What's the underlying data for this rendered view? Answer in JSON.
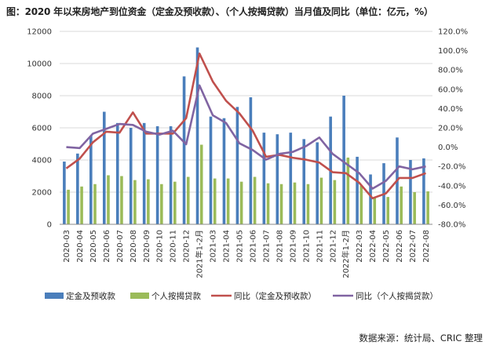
{
  "title": "图：2020 年以来房地产到位资金（定金及预收款）、（个人按揭贷款）当月值及同比（单位：亿元，%）",
  "source": "数据来源：统计局、CRIC 整理",
  "colors": {
    "bar1": "#4a7ebb",
    "bar2": "#9bbb59",
    "line1": "#c0504d",
    "line2": "#8064a2",
    "grid": "#d9d9d9",
    "axis": "#888888"
  },
  "chart_data": {
    "type": "bar",
    "categories": [
      "2020-03",
      "2020-04",
      "2020-05",
      "2020-06",
      "2020-07",
      "2020-08",
      "2020-09",
      "2020-10",
      "2020-11",
      "2020-12",
      "2021年1-2月",
      "2021-03",
      "2021-04",
      "2021-05",
      "2021-06",
      "2021-07",
      "2021-08",
      "2021-09",
      "2021-10",
      "2021-11",
      "2021-12",
      "2022年1-2月",
      "2022-03",
      "2022-04",
      "2022-05",
      "2022-06",
      "2022-07",
      "2022-08"
    ],
    "series": [
      {
        "name": "定金及预收款",
        "kind": "bar",
        "axis": "left",
        "values": [
          3900,
          4400,
          5500,
          7000,
          6300,
          6000,
          6300,
          6100,
          6100,
          9200,
          11000,
          6700,
          6600,
          7300,
          7900,
          5700,
          5600,
          5700,
          5300,
          5100,
          6700,
          8000,
          4200,
          3100,
          3800,
          5400,
          4000,
          4100
        ]
      },
      {
        "name": "个人按揭贷款",
        "kind": "bar",
        "axis": "left",
        "values": [
          2150,
          2350,
          2500,
          3050,
          3000,
          2750,
          2800,
          2500,
          2650,
          2950,
          4950,
          2850,
          2850,
          2650,
          2950,
          2550,
          2500,
          2600,
          2500,
          2900,
          2750,
          4150,
          2400,
          1700,
          1700,
          2350,
          2000,
          2050
        ]
      },
      {
        "name": "同比（定金及预收款）",
        "kind": "line",
        "axis": "right",
        "values": [
          -22,
          -12,
          5,
          16,
          15,
          36,
          14,
          14,
          14,
          30,
          97,
          68,
          48,
          35,
          17,
          -10,
          -8,
          -11,
          -13,
          -16,
          -26,
          -27,
          -37,
          -53,
          -48,
          -32,
          -32,
          -27
        ]
      },
      {
        "name": "同比（个人按揭贷款）",
        "kind": "line",
        "axis": "right",
        "values": [
          0,
          -1,
          14,
          19,
          24,
          23,
          16,
          13,
          17,
          3,
          64,
          33,
          25,
          4,
          -3,
          -13,
          -7,
          -5,
          1,
          10,
          -7,
          -17,
          -27,
          -43,
          -35,
          -20,
          -23,
          -20
        ]
      }
    ],
    "y_left": {
      "ylim": [
        0,
        12000
      ],
      "ticks": [
        0,
        2000,
        4000,
        6000,
        8000,
        10000,
        12000
      ]
    },
    "y_right": {
      "ylim": [
        -80,
        120
      ],
      "ticks": [
        "-80.0%",
        "-60.0%",
        "-40.0%",
        "-20.0%",
        "0.0%",
        "20.0%",
        "40.0%",
        "60.0%",
        "80.0%",
        "100.0%",
        "120.0%"
      ]
    },
    "grid": true,
    "legend": "bottom"
  }
}
